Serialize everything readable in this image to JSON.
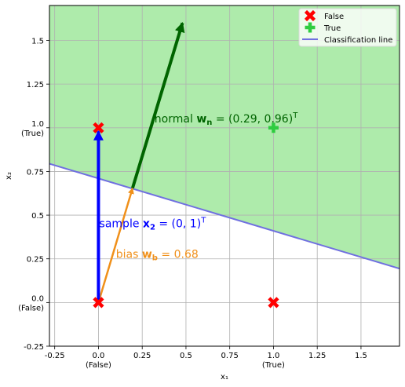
{
  "chart_data": {
    "type": "scatter",
    "title": "",
    "xlabel": "x₁",
    "ylabel": "x₂",
    "xlim": [
      -0.28,
      1.72
    ],
    "ylim": [
      -0.25,
      1.7
    ],
    "grid": true,
    "legend_position": "top-right",
    "x_ticks": [
      {
        "value": -0.25,
        "label": "-0.25",
        "sub": ""
      },
      {
        "value": 0,
        "label": "0.0",
        "sub": "(False)"
      },
      {
        "value": 0.25,
        "label": "0.25",
        "sub": ""
      },
      {
        "value": 0.5,
        "label": "0.5",
        "sub": ""
      },
      {
        "value": 0.75,
        "label": "0.75",
        "sub": ""
      },
      {
        "value": 1,
        "label": "1.0",
        "sub": "(True)"
      },
      {
        "value": 1.25,
        "label": "1.25",
        "sub": ""
      },
      {
        "value": 1.5,
        "label": "1.5",
        "sub": ""
      }
    ],
    "y_ticks": [
      {
        "value": -0.25,
        "label": "-0.25",
        "sub": ""
      },
      {
        "value": 0,
        "label": "0.0",
        "sub": "(False)"
      },
      {
        "value": 0.25,
        "label": "0.25",
        "sub": ""
      },
      {
        "value": 0.5,
        "label": "0.5",
        "sub": ""
      },
      {
        "value": 0.75,
        "label": "0.75",
        "sub": ""
      },
      {
        "value": 1,
        "label": "1.0",
        "sub": "(True)"
      },
      {
        "value": 1.25,
        "label": "1.25",
        "sub": ""
      },
      {
        "value": 1.5,
        "label": "1.5",
        "sub": ""
      }
    ],
    "series": [
      {
        "name": "False",
        "marker": "X",
        "color": "#ff0000",
        "points": [
          [
            0,
            0
          ],
          [
            0,
            1
          ],
          [
            1,
            0
          ]
        ]
      },
      {
        "name": "True",
        "marker": "P",
        "color": "#2ecc40",
        "points": [
          [
            1,
            1
          ]
        ]
      }
    ],
    "classification_line": {
      "name": "Classification line",
      "color": "#7070e0",
      "slope": -0.3,
      "intercept": 0.71
    },
    "true_region_color": "#aeebab",
    "vectors": [
      {
        "from": [
          0,
          0
        ],
        "to": [
          0.195,
          0.655
        ],
        "color": "#f0901a",
        "width": 2.5
      },
      {
        "from": [
          0.195,
          0.655
        ],
        "to": [
          0.48,
          1.6
        ],
        "color": "#006400",
        "width": 4
      },
      {
        "from": [
          0,
          0
        ],
        "to": [
          0,
          0.98
        ],
        "color": "#0000ff",
        "width": 4
      }
    ],
    "annotations": [
      {
        "key": "normal",
        "prefix": "normal ",
        "math": "w",
        "math_sub": "n",
        "suffix": " = (0.29, 0.96)",
        "sup": "T",
        "x": 0.32,
        "y": 1.03,
        "color": "#006400"
      },
      {
        "key": "sample",
        "prefix": "sample ",
        "math": "x",
        "math_sub": "2",
        "suffix": " = (0, 1)",
        "sup": "T",
        "x": 0.005,
        "y": 0.43,
        "color": "#0000ff"
      },
      {
        "key": "bias",
        "prefix": "bias ",
        "math": "w",
        "math_sub": "b",
        "suffix": " = 0.68",
        "sup": "",
        "x": 0.1,
        "y": 0.255,
        "color": "#f0901a"
      }
    ],
    "legend": [
      {
        "label": "False",
        "type": "marker-x",
        "color": "#ff0000"
      },
      {
        "label": "True",
        "type": "marker-plus",
        "color": "#2ecc40"
      },
      {
        "label": "Classification line",
        "type": "line",
        "color": "#7070e0"
      }
    ]
  }
}
